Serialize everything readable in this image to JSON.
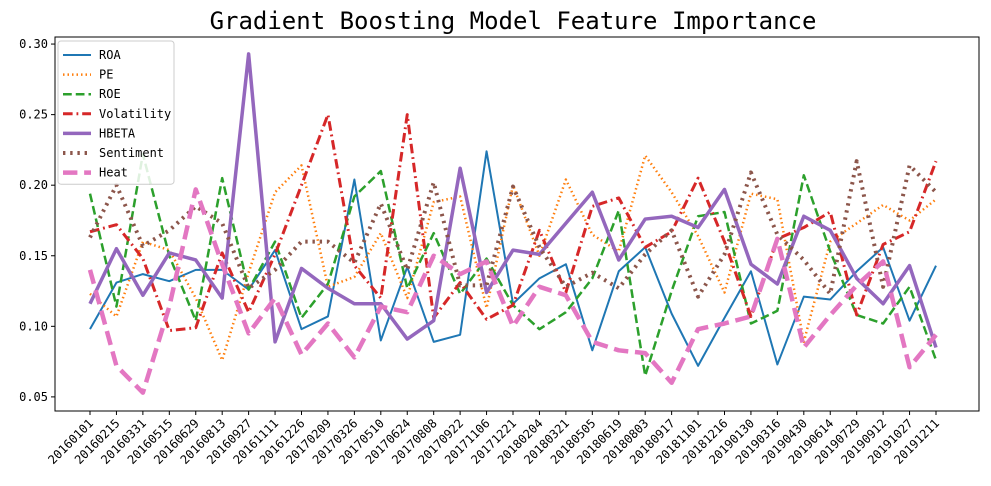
{
  "chart_data": {
    "type": "line",
    "title": "Gradient Boosting Model Feature Importance",
    "xlabel": "",
    "ylabel": "",
    "ylim": [
      0.04,
      0.305
    ],
    "yticks": [
      0.05,
      0.1,
      0.15,
      0.2,
      0.25,
      0.3
    ],
    "ytick_labels": [
      "0.05",
      "0.10",
      "0.15",
      "0.20",
      "0.25",
      "0.30"
    ],
    "grid": false,
    "legend_position": "top-left",
    "categories": [
      "20160101",
      "20160215",
      "20160331",
      "20160515",
      "20160629",
      "20160813",
      "20160927",
      "20161111",
      "20161226",
      "20170209",
      "20170326",
      "20170510",
      "20170624",
      "20170808",
      "20170922",
      "20171106",
      "20171221",
      "20180204",
      "20180321",
      "20180505",
      "20180619",
      "20180803",
      "20180917",
      "20181101",
      "20181216",
      "20190130",
      "20190316",
      "20190430",
      "20190614",
      "20190729",
      "20190912",
      "20191027",
      "20191211"
    ],
    "series": [
      {
        "name": "ROA",
        "color": "#1f77b4",
        "dash": "solid",
        "width": 2,
        "values": [
          0.098,
          0.131,
          0.137,
          0.132,
          0.14,
          0.14,
          0.126,
          0.154,
          0.098,
          0.107,
          0.204,
          0.09,
          0.142,
          0.089,
          0.094,
          0.224,
          0.116,
          0.134,
          0.144,
          0.083,
          0.139,
          0.156,
          0.109,
          0.072,
          0.106,
          0.139,
          0.073,
          0.121,
          0.119,
          0.139,
          0.156,
          0.104,
          0.143
        ]
      },
      {
        "name": "PE",
        "color": "#ff7f0e",
        "dash": "dotted",
        "width": 2.5,
        "values": [
          0.123,
          0.107,
          0.16,
          0.154,
          0.12,
          0.076,
          0.138,
          0.195,
          0.214,
          0.128,
          0.135,
          0.166,
          0.12,
          0.188,
          0.192,
          0.113,
          0.2,
          0.15,
          0.204,
          0.165,
          0.153,
          0.221,
          0.195,
          0.164,
          0.124,
          0.194,
          0.19,
          0.089,
          0.16,
          0.173,
          0.186,
          0.175,
          0.19
        ]
      },
      {
        "name": "ROE",
        "color": "#2ca02c",
        "dash": "dashed",
        "width": 2.5,
        "values": [
          0.194,
          0.114,
          0.222,
          0.15,
          0.104,
          0.205,
          0.126,
          0.16,
          0.106,
          0.13,
          0.192,
          0.21,
          0.127,
          0.166,
          0.123,
          0.148,
          0.115,
          0.098,
          0.11,
          0.134,
          0.182,
          0.065,
          0.125,
          0.178,
          0.181,
          0.102,
          0.111,
          0.207,
          0.153,
          0.108,
          0.102,
          0.128,
          0.076
        ]
      },
      {
        "name": "Volatility",
        "color": "#d62728",
        "dash": "dashdot",
        "width": 3,
        "values": [
          0.167,
          0.172,
          0.148,
          0.097,
          0.099,
          0.152,
          0.11,
          0.151,
          0.2,
          0.25,
          0.143,
          0.12,
          0.25,
          0.106,
          0.131,
          0.105,
          0.115,
          0.168,
          0.124,
          0.185,
          0.191,
          0.156,
          0.167,
          0.205,
          0.16,
          0.107,
          0.162,
          0.17,
          0.181,
          0.108,
          0.158,
          0.167,
          0.217
        ]
      },
      {
        "name": "HBETA",
        "color": "#9467bd",
        "dash": "solid",
        "width": 3.5,
        "values": [
          0.116,
          0.155,
          0.122,
          0.152,
          0.147,
          0.12,
          0.293,
          0.089,
          0.141,
          0.127,
          0.116,
          0.116,
          0.091,
          0.104,
          0.212,
          0.124,
          0.154,
          0.151,
          0.173,
          0.195,
          0.147,
          0.176,
          0.178,
          0.17,
          0.197,
          0.144,
          0.13,
          0.178,
          0.168,
          0.134,
          0.116,
          0.143,
          0.085
        ]
      },
      {
        "name": "Sentiment",
        "color": "#8c564b",
        "dash": "dotted",
        "width": 4,
        "values": [
          0.163,
          0.2,
          0.157,
          0.168,
          0.185,
          0.173,
          0.127,
          0.14,
          0.16,
          0.16,
          0.145,
          0.187,
          0.14,
          0.202,
          0.129,
          0.129,
          0.199,
          0.156,
          0.128,
          0.138,
          0.127,
          0.151,
          0.168,
          0.121,
          0.151,
          0.209,
          0.165,
          0.147,
          0.123,
          0.217,
          0.128,
          0.214,
          0.195
        ]
      },
      {
        "name": "Heat",
        "color": "#e377c2",
        "dash": "longdash",
        "width": 4.5,
        "values": [
          0.14,
          0.072,
          0.053,
          0.114,
          0.197,
          0.144,
          0.095,
          0.12,
          0.08,
          0.102,
          0.078,
          0.114,
          0.11,
          0.15,
          0.137,
          0.146,
          0.1,
          0.128,
          0.122,
          0.089,
          0.083,
          0.081,
          0.06,
          0.098,
          0.102,
          0.107,
          0.162,
          0.085,
          0.108,
          0.129,
          0.146,
          0.071,
          0.094
        ]
      }
    ]
  }
}
